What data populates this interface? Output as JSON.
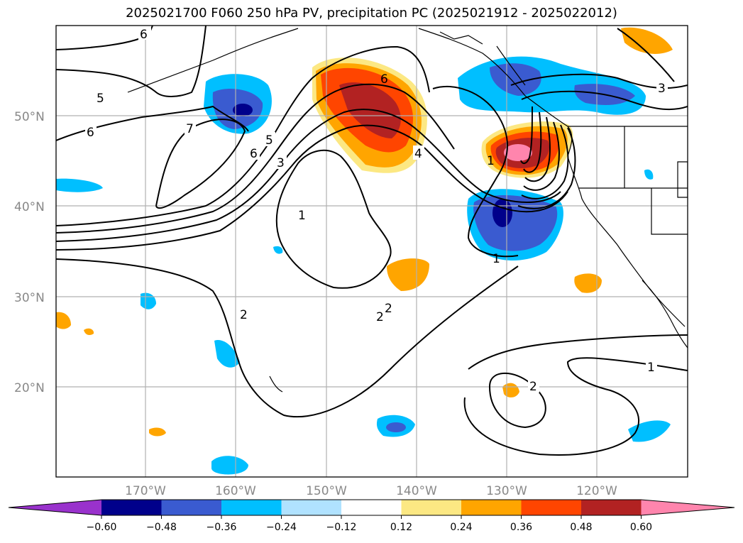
{
  "title": "2025021700 F060 250 hPa PV, precipitation PC (2025021912 - 2025022012)",
  "map": {
    "lon_range": [
      -180,
      -110
    ],
    "lat_range": [
      10,
      60
    ],
    "lat_labels": [
      "50°N",
      "40°N",
      "30°N",
      "20°N"
    ],
    "lon_labels": [
      "170°W",
      "160°W",
      "150°W",
      "140°W",
      "130°W",
      "120°W"
    ],
    "grid": true
  },
  "contour_labels": [
    "6",
    "5",
    "6",
    "7",
    "6",
    "5",
    "3",
    "1",
    "6",
    "4",
    "1",
    "2",
    "2",
    "2",
    "1",
    "1",
    "2",
    "3"
  ],
  "colorbar": {
    "ticks": [
      "−0.60",
      "−0.48",
      "−0.36",
      "−0.24",
      "−0.12",
      "0.12",
      "0.24",
      "0.36",
      "0.48",
      "0.60"
    ],
    "colors": [
      "#9932cc",
      "#00008b",
      "#3a5bd0",
      "#00bfff",
      "#b0e2ff",
      "#ffffff",
      "#fce883",
      "#ffa500",
      "#ff4500",
      "#b22222",
      "#ff85ad"
    ]
  }
}
